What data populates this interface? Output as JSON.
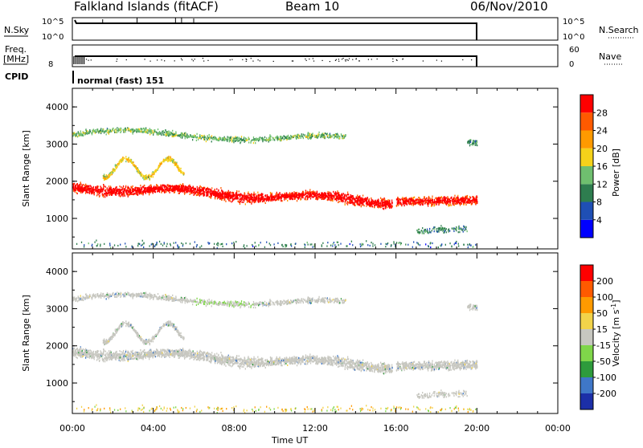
{
  "header": {
    "radar": "Falkland Islands (fitACF)",
    "beam": "Beam 10",
    "date": "06/Nov/2010"
  },
  "top_panels": {
    "nsky_label": "N.Sky",
    "nsky_ticks": [
      "10^5",
      "10^0"
    ],
    "nsearch_label": "N.Search",
    "nsearch_ticks": [
      "10^5",
      "10^0"
    ],
    "freq_label": "Freq.",
    "freq_unit": "[MHz]",
    "freq_ticks": [
      "8"
    ],
    "nave_label": "Nave",
    "nave_ticks": [
      "60",
      "0"
    ],
    "cpid_label": "CPID",
    "cpid_value": "normal (fast) 151"
  },
  "chart_data": [
    {
      "type": "heatmap",
      "name": "power",
      "ylabel": "Slant Range [km]",
      "xlabel": "",
      "y_ticks": [
        "1000",
        "2000",
        "3000",
        "4000"
      ],
      "colorbar": {
        "label": "Power [dB]",
        "ticks": [
          "4",
          "8",
          "12",
          "16",
          "20",
          "24",
          "28"
        ],
        "colors": [
          "#0000ff",
          "#1f4fb5",
          "#2e7d4f",
          "#6fbf6f",
          "#f5d21a",
          "#ff9a00",
          "#ff5a00",
          "#ff0000"
        ]
      }
    },
    {
      "type": "heatmap",
      "name": "velocity",
      "ylabel": "Slant Range [km]",
      "xlabel": "Time UT",
      "x_ticks": [
        "00:00",
        "04:00",
        "08:00",
        "12:00",
        "16:00",
        "20:00",
        "00:00"
      ],
      "y_ticks": [
        "1000",
        "2000",
        "3000",
        "4000"
      ],
      "colorbar": {
        "label": "Velocity [m s",
        "label_sup": "-1",
        "label_end": "]",
        "ticks": [
          "200",
          "100",
          "50",
          "15",
          "-15",
          "-50",
          "-100",
          "-200"
        ],
        "colors": [
          "#1c2fa8",
          "#3f77c8",
          "#2e9b3c",
          "#7fd64a",
          "#c7c7c0",
          "#f2d34a",
          "#ff9a00",
          "#ff5a00",
          "#ff0000"
        ]
      }
    }
  ]
}
